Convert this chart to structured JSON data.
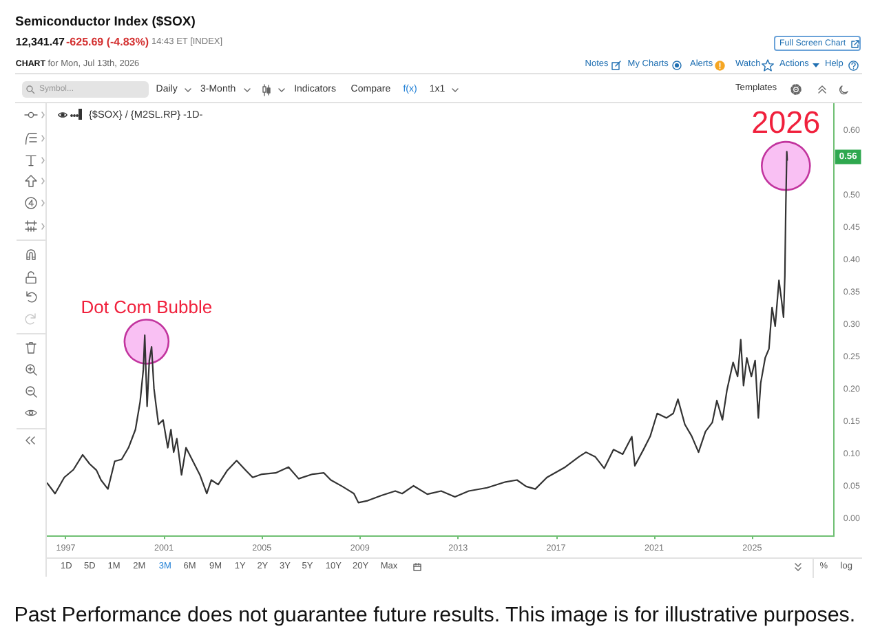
{
  "chart_data": {
    "type": "line",
    "title": "Semiconductor Index ($SOX)",
    "x": [
      "1996-04-01",
      "1996-07-26",
      "1996-12-10",
      "1997-04-25",
      "1997-09-10",
      "1997-12-22",
      "1998-04-04",
      "1998-06-10",
      "1998-09-21",
      "1999-01-01",
      "1999-04-14",
      "1999-07-25",
      "1999-11-05",
      "2000-01-14",
      "2000-03-02",
      "2000-03-23",
      "2000-04-27",
      "2000-05-30",
      "2000-07-03",
      "2000-08-07",
      "2000-09-09",
      "2000-10-14",
      "2000-12-21",
      "2001-03-01",
      "2001-04-17",
      "2001-05-28",
      "2001-07-14",
      "2001-09-22",
      "2001-11-28",
      "2002-03-11",
      "2002-06-22",
      "2002-10-03",
      "2002-12-09",
      "2003-03-22",
      "2003-08-06",
      "2003-12-22",
      "2004-05-06",
      "2004-08-17",
      "2005-01-02",
      "2005-07-26",
      "2006-02-02",
      "2006-07-03",
      "2007-01-25",
      "2007-07-14",
      "2007-10-25",
      "2008-04-14",
      "2008-10-03",
      "2008-12-09",
      "2009-04-25",
      "2009-11-17",
      "2010-06-11",
      "2010-09-22",
      "2011-03-11",
      "2011-10-02",
      "2012-04-25",
      "2012-11-16",
      "2013-06-10",
      "2014-03-10",
      "2014-12-10",
      "2015-05-30",
      "2015-10-14",
      "2016-02-27",
      "2016-08-18",
      "2017-05-18",
      "2017-12-09",
      "2018-03-23",
      "2018-08-07",
      "2018-12-20",
      "2019-05-07",
      "2019-09-21",
      "2020-02-04",
      "2020-03-20",
      "2020-07-26",
      "2020-11-05",
      "2021-02-16",
      "2021-07-02",
      "2021-10-13",
      "2021-12-22",
      "2022-04-04",
      "2022-07-14",
      "2022-10-25",
      "2023-02-05",
      "2023-05-18",
      "2023-07-25",
      "2023-10-16",
      "2023-12-22",
      "2024-03-23",
      "2024-05-29",
      "2024-07-15",
      "2024-08-25",
      "2024-10-13",
      "2024-12-20",
      "2025-02-14",
      "2025-04-03",
      "2025-05-08",
      "2025-07-14",
      "2025-09-08",
      "2025-10-24",
      "2025-12-10",
      "2026-02-04",
      "2026-03-11",
      "2026-04-13",
      "2026-05-03",
      "2026-05-17",
      "2026-06-01",
      "2026-06-07"
    ],
    "series": [
      {
        "name": "{$SOX} / {M2SL.RP} -1D-",
        "color": "#333333",
        "values": [
          0.055,
          0.039,
          0.064,
          0.076,
          0.099,
          0.085,
          0.075,
          0.06,
          0.046,
          0.089,
          0.092,
          0.11,
          0.138,
          0.181,
          0.231,
          0.284,
          0.174,
          0.245,
          0.266,
          0.202,
          0.174,
          0.146,
          0.153,
          0.11,
          0.138,
          0.103,
          0.124,
          0.068,
          0.11,
          0.089,
          0.068,
          0.039,
          0.06,
          0.053,
          0.075,
          0.09,
          0.075,
          0.064,
          0.069,
          0.071,
          0.08,
          0.062,
          0.069,
          0.071,
          0.06,
          0.05,
          0.039,
          0.025,
          0.028,
          0.036,
          0.043,
          0.039,
          0.051,
          0.038,
          0.043,
          0.034,
          0.043,
          0.048,
          0.057,
          0.06,
          0.05,
          0.046,
          0.064,
          0.08,
          0.096,
          0.103,
          0.096,
          0.078,
          0.107,
          0.1,
          0.127,
          0.082,
          0.107,
          0.128,
          0.163,
          0.156,
          0.163,
          0.185,
          0.146,
          0.128,
          0.103,
          0.135,
          0.149,
          0.183,
          0.153,
          0.199,
          0.242,
          0.22,
          0.277,
          0.206,
          0.249,
          0.22,
          0.245,
          0.156,
          0.21,
          0.249,
          0.263,
          0.327,
          0.298,
          0.369,
          0.341,
          0.312,
          0.376,
          0.483,
          0.568,
          0.555
        ]
      }
    ],
    "xlim": [
      "1996-03-25",
      "2028-04-30"
    ],
    "xticks": [
      "1997",
      "2001",
      "2005",
      "2009",
      "2013",
      "2017",
      "2021",
      "2025"
    ],
    "ylim": [
      -0.027,
      0.643
    ],
    "yticks": [
      {
        "value": 0,
        "label": "0.00"
      },
      {
        "value": 0.05,
        "label": "0.05"
      },
      {
        "value": 0.1,
        "label": "0.10"
      },
      {
        "value": 0.15,
        "label": "0.15"
      },
      {
        "value": 0.2,
        "label": "0.20"
      },
      {
        "value": 0.25,
        "label": "0.25"
      },
      {
        "value": 0.3,
        "label": "0.30"
      },
      {
        "value": 0.35,
        "label": "0.35"
      },
      {
        "value": 0.4,
        "label": "0.40"
      },
      {
        "value": 0.45,
        "label": "0.45"
      },
      {
        "value": 0.5,
        "label": "0.50"
      },
      {
        "value": 0.6,
        "label": "0.60"
      }
    ],
    "legend": "top left",
    "annotations": [
      "12,341.47",
      "-625.69 (-4.83%)",
      "14:43 ET [INDEX]",
      "Full Screen Chart",
      "CHART",
      "for Mon, Jul 13th, 2026",
      "Notes",
      "My Charts",
      "Alerts",
      "Watch",
      "Actions",
      "Help",
      "Symbol...",
      "Daily",
      "3-Month",
      "Indicators",
      "Compare",
      "f(x)",
      "1x1",
      "Templates",
      "1D",
      "5D",
      "1M",
      "2M",
      "3M",
      "6M",
      "9M",
      "1Y",
      "2Y",
      "3Y",
      "5Y",
      "10Y",
      "20Y",
      "Max",
      "%",
      "log",
      "Past Performance does not guarantee future results. This image is for illustrative purposes.",
      {
        "text": "Dot Com Bubble",
        "x": "2000-04-19",
        "y": 0.274
      },
      {
        "text": "2026",
        "x": "2026-05-18",
        "y": 0.546
      },
      {
        "text": "0.56",
        "y": 0.56
      }
    ]
  }
}
